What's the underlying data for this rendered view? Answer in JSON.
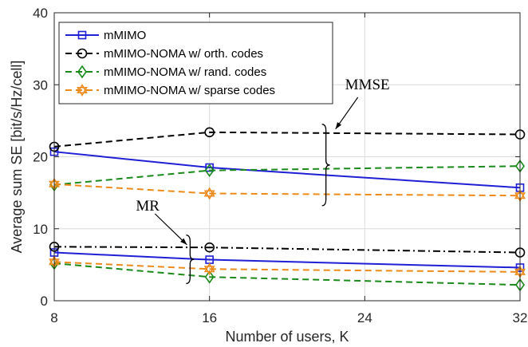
{
  "chart_data": {
    "type": "line",
    "x": [
      8,
      16,
      32
    ],
    "xlabel": "Number of users, K",
    "ylabel": "Average sum SE [bit/s/Hz/cell]",
    "xlim": [
      8,
      32
    ],
    "ylim": [
      0,
      40
    ],
    "xticks": [
      8,
      16,
      24,
      32
    ],
    "yticks": [
      0,
      10,
      20,
      30,
      40
    ],
    "grid": true,
    "legend_position": "top-left",
    "series": [
      {
        "name": "mMIMO",
        "group": "MMSE",
        "color": "#1f1fd6",
        "dash": "solid",
        "marker": "square",
        "values": [
          20.7,
          18.5,
          15.7
        ]
      },
      {
        "name": "mMIMO-NOMA w/ orth. codes",
        "group": "MMSE",
        "color": "#000000",
        "dash": "dashed",
        "marker": "circle",
        "values": [
          21.4,
          23.4,
          23.1
        ]
      },
      {
        "name": "mMIMO-NOMA w/ rand. codes",
        "group": "MMSE",
        "color": "#1a8a1a",
        "dash": "dashed",
        "marker": "diamond",
        "values": [
          16.1,
          18.1,
          18.7
        ]
      },
      {
        "name": "mMIMO-NOMA w/ sparse codes",
        "group": "MMSE",
        "color": "#ee8a1a",
        "dash": "dashed",
        "marker": "hexagram",
        "values": [
          16.2,
          14.9,
          14.6
        ]
      },
      {
        "name": "mMIMO",
        "group": "MR",
        "color": "#1f1fd6",
        "dash": "solid",
        "marker": "square",
        "values": [
          6.7,
          5.7,
          4.6
        ]
      },
      {
        "name": "mMIMO-NOMA w/ orth. codes",
        "group": "MR",
        "color": "#000000",
        "dash": "dashdot",
        "marker": "circle",
        "values": [
          7.5,
          7.4,
          6.7
        ]
      },
      {
        "name": "mMIMO-NOMA w/ rand. codes",
        "group": "MR",
        "color": "#1a8a1a",
        "dash": "dashed",
        "marker": "diamond",
        "values": [
          5.2,
          3.3,
          2.2
        ]
      },
      {
        "name": "mMIMO-NOMA w/ sparse codes",
        "group": "MR",
        "color": "#ee8a1a",
        "dash": "dashed",
        "marker": "hexagram",
        "values": [
          5.4,
          4.4,
          4.0
        ]
      }
    ],
    "legend": [
      {
        "label": "mMIMO",
        "color": "#1f1fd6",
        "dash": "solid",
        "marker": "square"
      },
      {
        "label": "mMIMO-NOMA w/ orth. codes",
        "color": "#000000",
        "dash": "dashed",
        "marker": "circle"
      },
      {
        "label": "mMIMO-NOMA w/ rand. codes",
        "color": "#1a8a1a",
        "dash": "dashed",
        "marker": "diamond"
      },
      {
        "label": "mMIMO-NOMA w/ sparse codes",
        "color": "#ee8a1a",
        "dash": "dashed",
        "marker": "hexagram"
      }
    ],
    "annotations": [
      {
        "text": "MMSE",
        "x": 22,
        "y_range": [
          13.2,
          23.4
        ]
      },
      {
        "text": "MR",
        "x": 15,
        "y_range": [
          2.5,
          9.0
        ]
      }
    ]
  }
}
